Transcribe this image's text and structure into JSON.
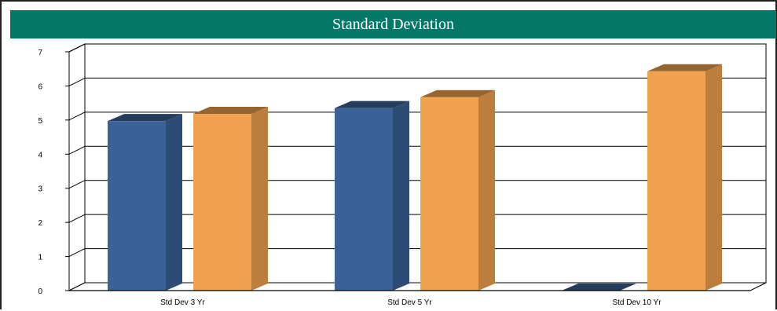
{
  "chart_data": {
    "type": "bar",
    "title": "Standard Deviation",
    "categories": [
      "Std Dev 3 Yr",
      "Std Dev 5 Yr",
      "Std Dev 10 Yr"
    ],
    "series": [
      {
        "values": [
          4.97,
          5.35,
          0
        ],
        "color": "#3A6296"
      },
      {
        "values": [
          5.18,
          5.67,
          6.43
        ],
        "color": "#F0A24E"
      }
    ],
    "ylim": [
      0,
      7
    ],
    "yticks": [
      0,
      1,
      2,
      3,
      4,
      5,
      6,
      7
    ],
    "grid": true,
    "legend": "none"
  },
  "colors": {
    "title_bar": "#047868",
    "title_text": "#FFFFFF"
  }
}
